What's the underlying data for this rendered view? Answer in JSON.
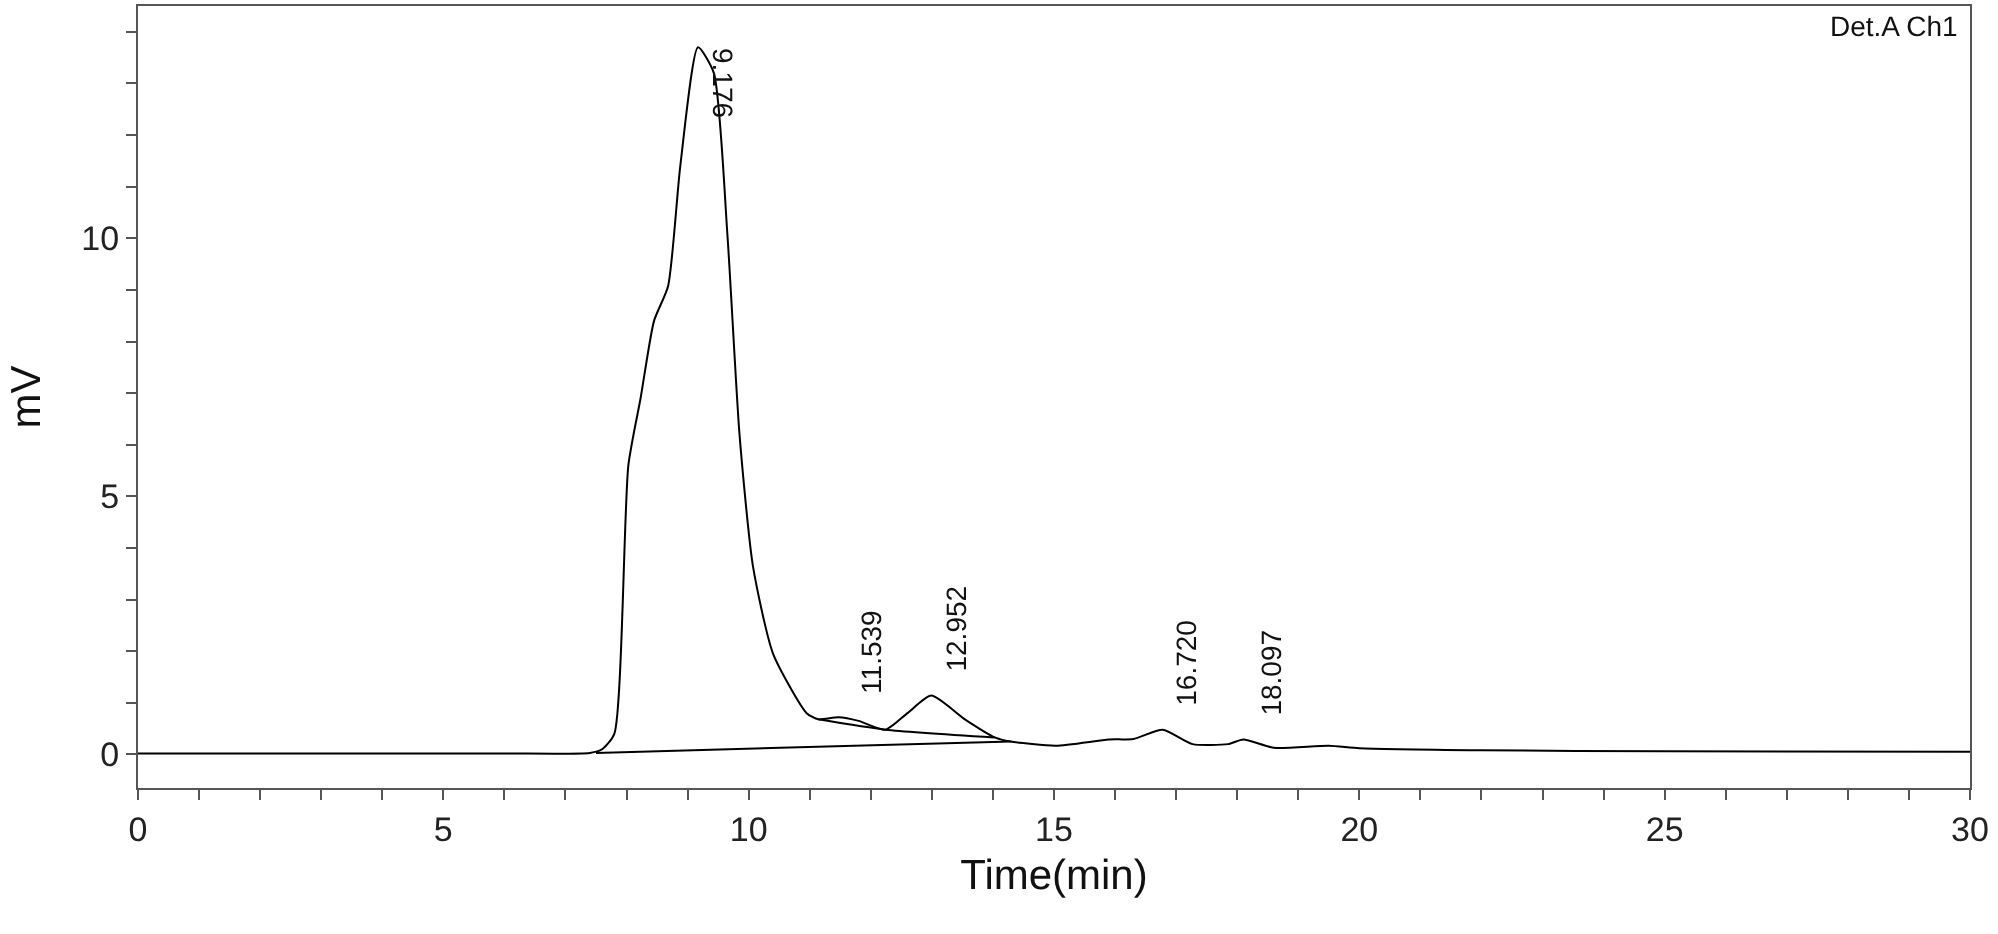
{
  "chart_data": {
    "type": "line",
    "xlabel": "Time(min)",
    "ylabel": "mV",
    "xlim": [
      0,
      30
    ],
    "ylim": [
      -0.65,
      14.5
    ],
    "xticks": [
      0,
      {
        "value": 1,
        "label": null
      },
      {
        "value": 2,
        "label": null
      },
      {
        "value": 3,
        "label": null
      },
      {
        "value": 4,
        "label": null
      },
      5,
      {
        "value": 6,
        "label": null
      },
      {
        "value": 7,
        "label": null
      },
      {
        "value": 8,
        "label": null
      },
      {
        "value": 9,
        "label": null
      },
      10,
      {
        "value": 11,
        "label": null
      },
      {
        "value": 12,
        "label": null
      },
      {
        "value": 13,
        "label": null
      },
      {
        "value": 14,
        "label": null
      },
      15,
      {
        "value": 16,
        "label": null
      },
      {
        "value": 17,
        "label": null
      },
      {
        "value": 18,
        "label": null
      },
      {
        "value": 19,
        "label": null
      },
      20,
      {
        "value": 21,
        "label": null
      },
      {
        "value": 22,
        "label": null
      },
      {
        "value": 23,
        "label": null
      },
      {
        "value": 24,
        "label": null
      },
      25,
      {
        "value": 26,
        "label": null
      },
      {
        "value": 27,
        "label": null
      },
      {
        "value": 28,
        "label": null
      },
      {
        "value": 29,
        "label": null
      },
      30
    ],
    "yticks": [
      0,
      {
        "value": 1,
        "label": null
      },
      {
        "value": 2,
        "label": null
      },
      {
        "value": 3,
        "label": null
      },
      {
        "value": 4,
        "label": null
      },
      5,
      {
        "value": 6,
        "label": null
      },
      {
        "value": 7,
        "label": null
      },
      {
        "value": 8,
        "label": null
      },
      {
        "value": 9,
        "label": null
      },
      10,
      {
        "value": 11,
        "label": null
      },
      {
        "value": 12,
        "label": null
      },
      {
        "value": 13,
        "label": null
      },
      {
        "value": 14,
        "label": null
      }
    ],
    "line_style": "solid",
    "marker": "none",
    "series": [
      {
        "color": "#000000",
        "x": [
          0,
          3,
          6,
          7.4,
          7.6,
          7.8,
          8.03,
          8.23,
          8.45,
          8.68,
          8.88,
          9.17,
          9.43,
          9.65,
          9.85,
          10.07,
          10.4,
          10.95,
          11.14,
          11.47,
          11.8,
          12.24,
          12.6,
          12.99,
          13.54,
          14.03,
          14.29,
          15.03,
          15.9,
          16.3,
          16.78,
          17.27,
          17.85,
          18.1,
          18.6,
          19.5,
          20,
          22,
          25,
          30
        ],
        "values": [
          0.02,
          0.02,
          0.02,
          0.03,
          0.1,
          0.4,
          5.6,
          6.9,
          8.4,
          9.07,
          11.4,
          13.7,
          13.2,
          10.1,
          6.2,
          3.65,
          1.95,
          0.8,
          0.68,
          0.72,
          0.65,
          0.48,
          0.8,
          1.14,
          0.68,
          0.33,
          0.25,
          0.17,
          0.29,
          0.3,
          0.48,
          0.2,
          0.2,
          0.29,
          0.13,
          0.17,
          0.12,
          0.08,
          0.06,
          0.05
        ]
      },
      {
        "color": "#000000",
        "x": [
          7.5,
          14.3,
          null,
          11.14,
          12.24,
          14.03
        ],
        "values": [
          0.03,
          0.25,
          null,
          0.68,
          0.48,
          0.33
        ]
      }
    ],
    "annotations": [
      {
        "text": "9.176",
        "x": 9.176,
        "y": 13.7
      },
      {
        "text": "11.539",
        "x": 11.539,
        "y": 0.72
      },
      {
        "text": "12.952",
        "x": 12.952,
        "y": 1.14
      },
      {
        "text": "16.720",
        "x": 16.72,
        "y": 0.48
      },
      {
        "text": "18.097",
        "x": 18.097,
        "y": 0.29
      },
      "Det.A Ch1"
    ]
  }
}
